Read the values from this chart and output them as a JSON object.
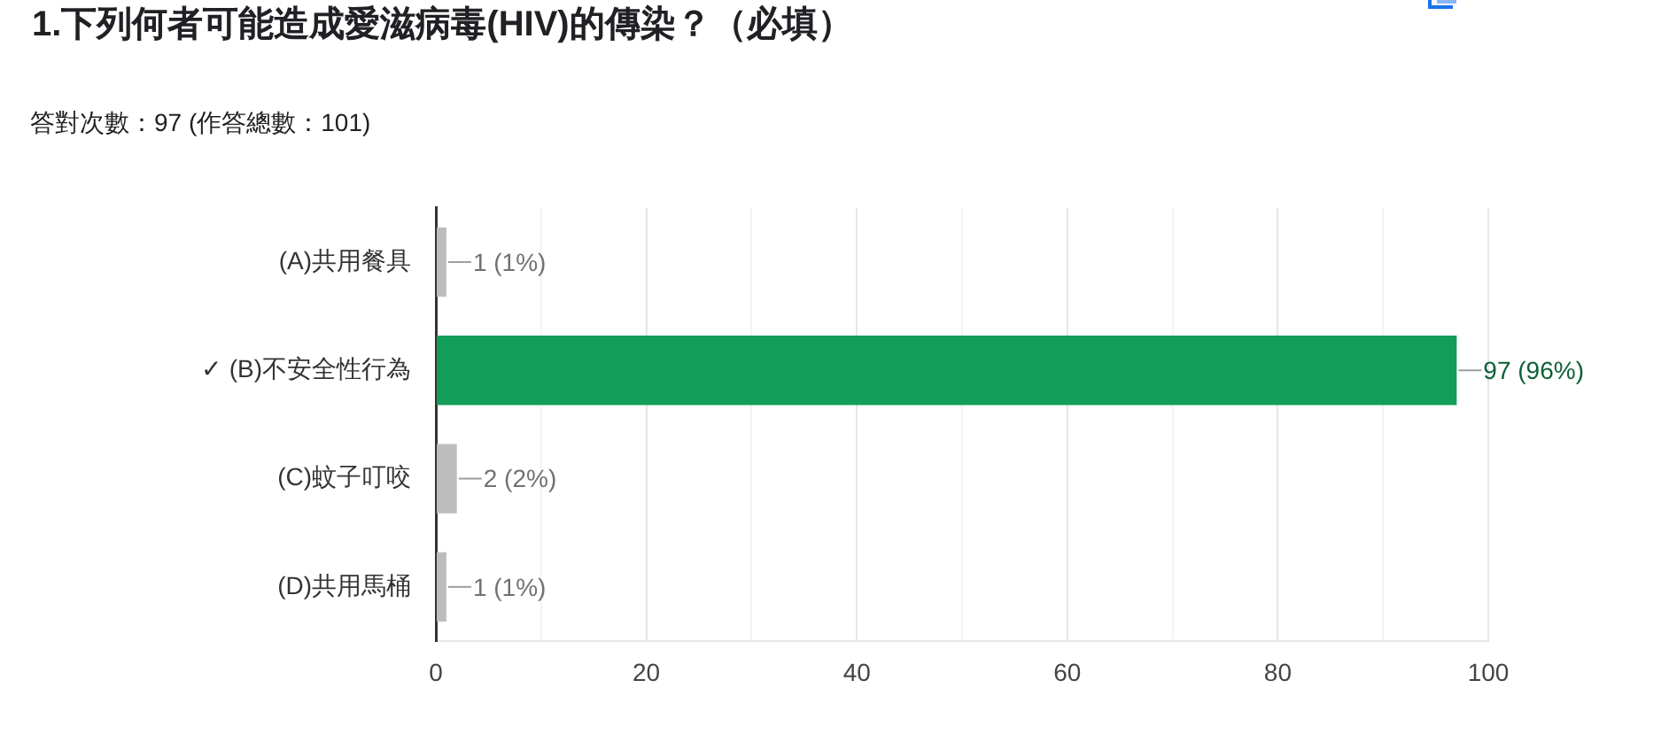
{
  "chart_data": {
    "type": "bar",
    "orientation": "horizontal",
    "title": "1.下列何者可能造成愛滋病毒(HIV)的傳染？（必填）",
    "subtitle": "答對次數：97 (作答總數：101)",
    "categories": [
      "(A)共用餐具",
      "✓ (B)不安全性行為",
      "(C)蚊子叮咬",
      "(D)共用馬桶"
    ],
    "values": [
      1,
      97,
      2,
      1
    ],
    "colors": [
      "#bdbdbd",
      "#129e58",
      "#bdbdbd",
      "#bdbdbd"
    ],
    "value_labels": [
      "1 (1%)",
      "97 (96%)",
      "2 (2%)",
      "1 (1%)"
    ],
    "xlim": [
      0,
      100
    ],
    "xticks": [
      0,
      {
        "value": 10,
        "label": null
      },
      20,
      {
        "value": 30,
        "label": null
      },
      40,
      {
        "value": 50,
        "label": null
      },
      60,
      {
        "value": 70,
        "label": null
      },
      80,
      {
        "value": 90,
        "label": null
      },
      100
    ],
    "grid": "x"
  }
}
